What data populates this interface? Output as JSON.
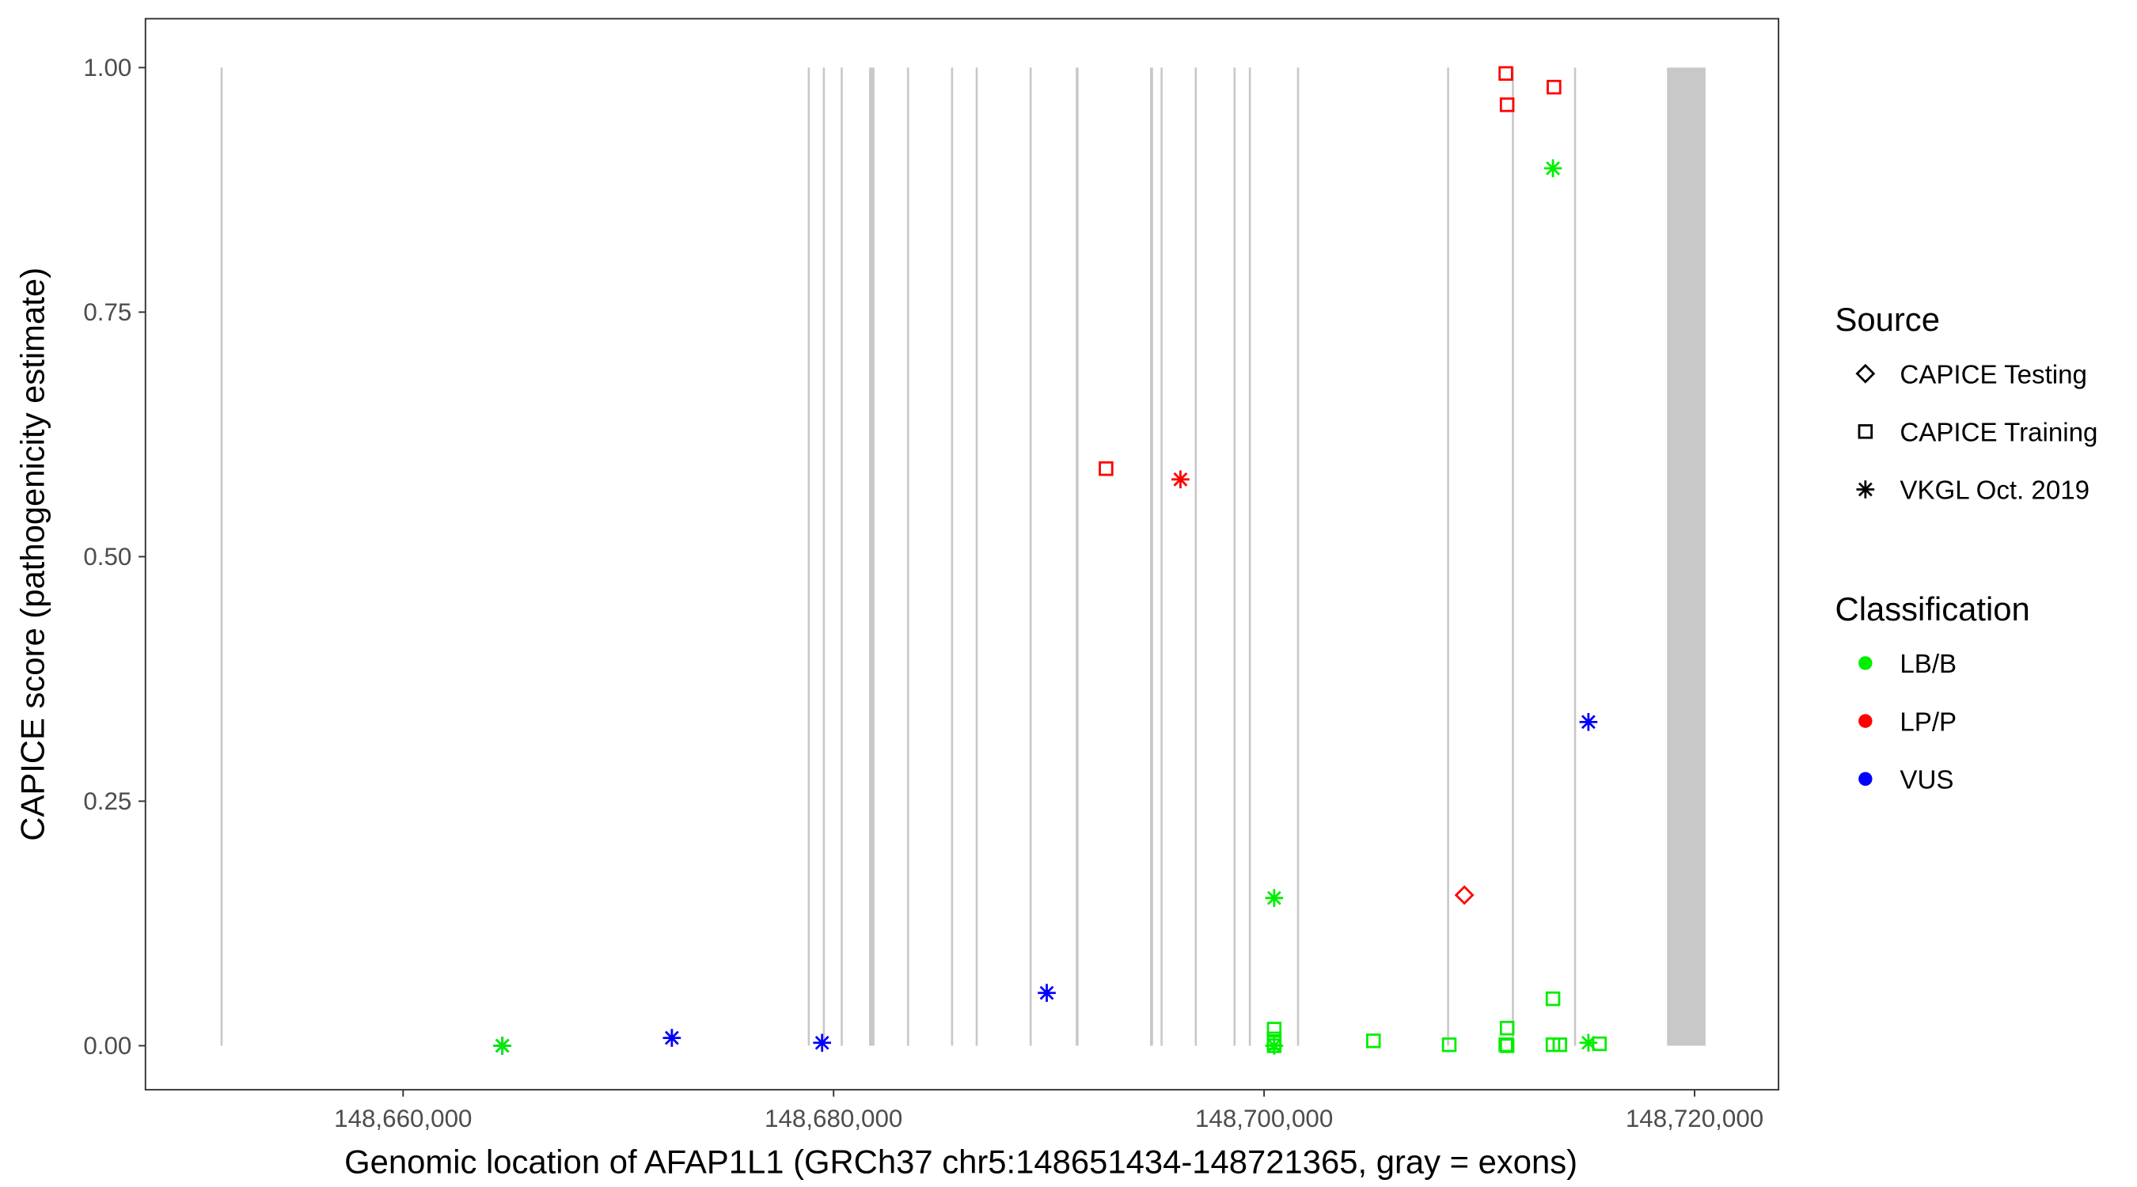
{
  "chart_data": {
    "type": "scatter",
    "title": "",
    "xlabel": "Genomic location of AFAP1L1 (GRCh37 chr5:148651434-148721365, gray = exons)",
    "ylabel": "CAPICE score (pathogenicity estimate)",
    "xlim": [
      148648030,
      148723900
    ],
    "ylim": [
      -0.045,
      1.05
    ],
    "x_ticks": [
      148660000,
      148680000,
      148700000,
      148720000
    ],
    "x_tick_labels": [
      "148,660,000",
      "148,680,000",
      "148,700,000",
      "148,720,000"
    ],
    "y_ticks": [
      0,
      0.25,
      0.5,
      0.75,
      1.0
    ],
    "y_tick_labels": [
      "0.00",
      "0.25",
      "0.50",
      "0.75",
      "1.00"
    ],
    "grid": false,
    "legend_position": "right",
    "exon_color": "#c8c8c8",
    "exons": [
      [
        148651520,
        148651580
      ],
      [
        148678800,
        148678860
      ],
      [
        148679500,
        148679560
      ],
      [
        148680330,
        148680390
      ],
      [
        148681650,
        148681900
      ],
      [
        148683410,
        148683470
      ],
      [
        148685455,
        148685515
      ],
      [
        148686600,
        148686680
      ],
      [
        148689105,
        148689165
      ],
      [
        148691250,
        148691380
      ],
      [
        148694700,
        148694840
      ],
      [
        148695190,
        148695250
      ],
      [
        148696780,
        148696860
      ],
      [
        148698580,
        148698640
      ],
      [
        148699290,
        148699350
      ],
      [
        148701530,
        148701590
      ],
      [
        148708500,
        148708570
      ],
      [
        148711510,
        148711590
      ],
      [
        148714400,
        148714460
      ],
      [
        148718720,
        148720510
      ]
    ],
    "legends": {
      "source": {
        "title": "Source",
        "items": [
          {
            "label": "CAPICE Testing",
            "shape": "diamond"
          },
          {
            "label": "CAPICE Training",
            "shape": "square"
          },
          {
            "label": "VKGL Oct. 2019",
            "shape": "star"
          }
        ]
      },
      "classification": {
        "title": "Classification",
        "items": [
          {
            "label": "LB/B",
            "color": "#00ee00"
          },
          {
            "label": "LP/P",
            "color": "#ff0000"
          },
          {
            "label": "VUS",
            "color": "#0000ff"
          }
        ]
      }
    },
    "points": [
      {
        "x": 148664610,
        "y": 0.0,
        "source": "VKGL Oct. 2019",
        "class": "VUS"
      },
      {
        "x": 148664610,
        "y": 0.0,
        "source": "VKGL Oct. 2019",
        "class": "LB/B"
      },
      {
        "x": 148672486,
        "y": 0.008,
        "source": "VKGL Oct. 2019",
        "class": "VUS"
      },
      {
        "x": 148679466,
        "y": 0.003,
        "source": "VKGL Oct. 2019",
        "class": "VUS"
      },
      {
        "x": 148689903,
        "y": 0.054,
        "source": "VKGL Oct. 2019",
        "class": "VUS"
      },
      {
        "x": 148692657,
        "y": 0.59,
        "source": "CAPICE Training",
        "class": "LP/P"
      },
      {
        "x": 148696114,
        "y": 0.579,
        "source": "VKGL Oct. 2019",
        "class": "LP/P"
      },
      {
        "x": 148700469,
        "y": 0.151,
        "source": "VKGL Oct. 2019",
        "class": "LB/B"
      },
      {
        "x": 148700469,
        "y": 0.017,
        "source": "CAPICE Training",
        "class": "LB/B"
      },
      {
        "x": 148700469,
        "y": 0.007,
        "source": "CAPICE Training",
        "class": "LB/B"
      },
      {
        "x": 148700469,
        "y": 0.003,
        "source": "CAPICE Training",
        "class": "LB/B"
      },
      {
        "x": 148700469,
        "y": 0.0,
        "source": "CAPICE Training",
        "class": "LB/B"
      },
      {
        "x": 148700469,
        "y": 0.0,
        "source": "VKGL Oct. 2019",
        "class": "LB/B"
      },
      {
        "x": 148705079,
        "y": 0.005,
        "source": "CAPICE Training",
        "class": "LB/B"
      },
      {
        "x": 148708601,
        "y": 0.001,
        "source": "CAPICE Training",
        "class": "LB/B"
      },
      {
        "x": 148709305,
        "y": 0.154,
        "source": "CAPICE Testing",
        "class": "LP/P"
      },
      {
        "x": 148711290,
        "y": 0.018,
        "source": "CAPICE Training",
        "class": "LB/B"
      },
      {
        "x": 148711230,
        "y": 0.001,
        "source": "CAPICE Training",
        "class": "LB/B"
      },
      {
        "x": 148711290,
        "y": 0.0,
        "source": "CAPICE Training",
        "class": "LB/B"
      },
      {
        "x": 148711230,
        "y": 0.994,
        "source": "CAPICE Training",
        "class": "LP/P"
      },
      {
        "x": 148711290,
        "y": 0.962,
        "source": "CAPICE Training",
        "class": "LP/P"
      },
      {
        "x": 148713467,
        "y": 0.98,
        "source": "CAPICE Training",
        "class": "LP/P"
      },
      {
        "x": 148713420,
        "y": 0.897,
        "source": "VKGL Oct. 2019",
        "class": "LB/B"
      },
      {
        "x": 148713420,
        "y": 0.048,
        "source": "CAPICE Training",
        "class": "LB/B"
      },
      {
        "x": 148713420,
        "y": 0.001,
        "source": "CAPICE Training",
        "class": "LB/B"
      },
      {
        "x": 148713740,
        "y": 0.001,
        "source": "CAPICE Training",
        "class": "LB/B"
      },
      {
        "x": 148715068,
        "y": 0.003,
        "source": "VKGL Oct. 2019",
        "class": "LB/B"
      },
      {
        "x": 148715580,
        "y": 0.002,
        "source": "CAPICE Training",
        "class": "LB/B"
      },
      {
        "x": 148715068,
        "y": 0.331,
        "source": "VKGL Oct. 2019",
        "class": "VUS"
      }
    ]
  }
}
